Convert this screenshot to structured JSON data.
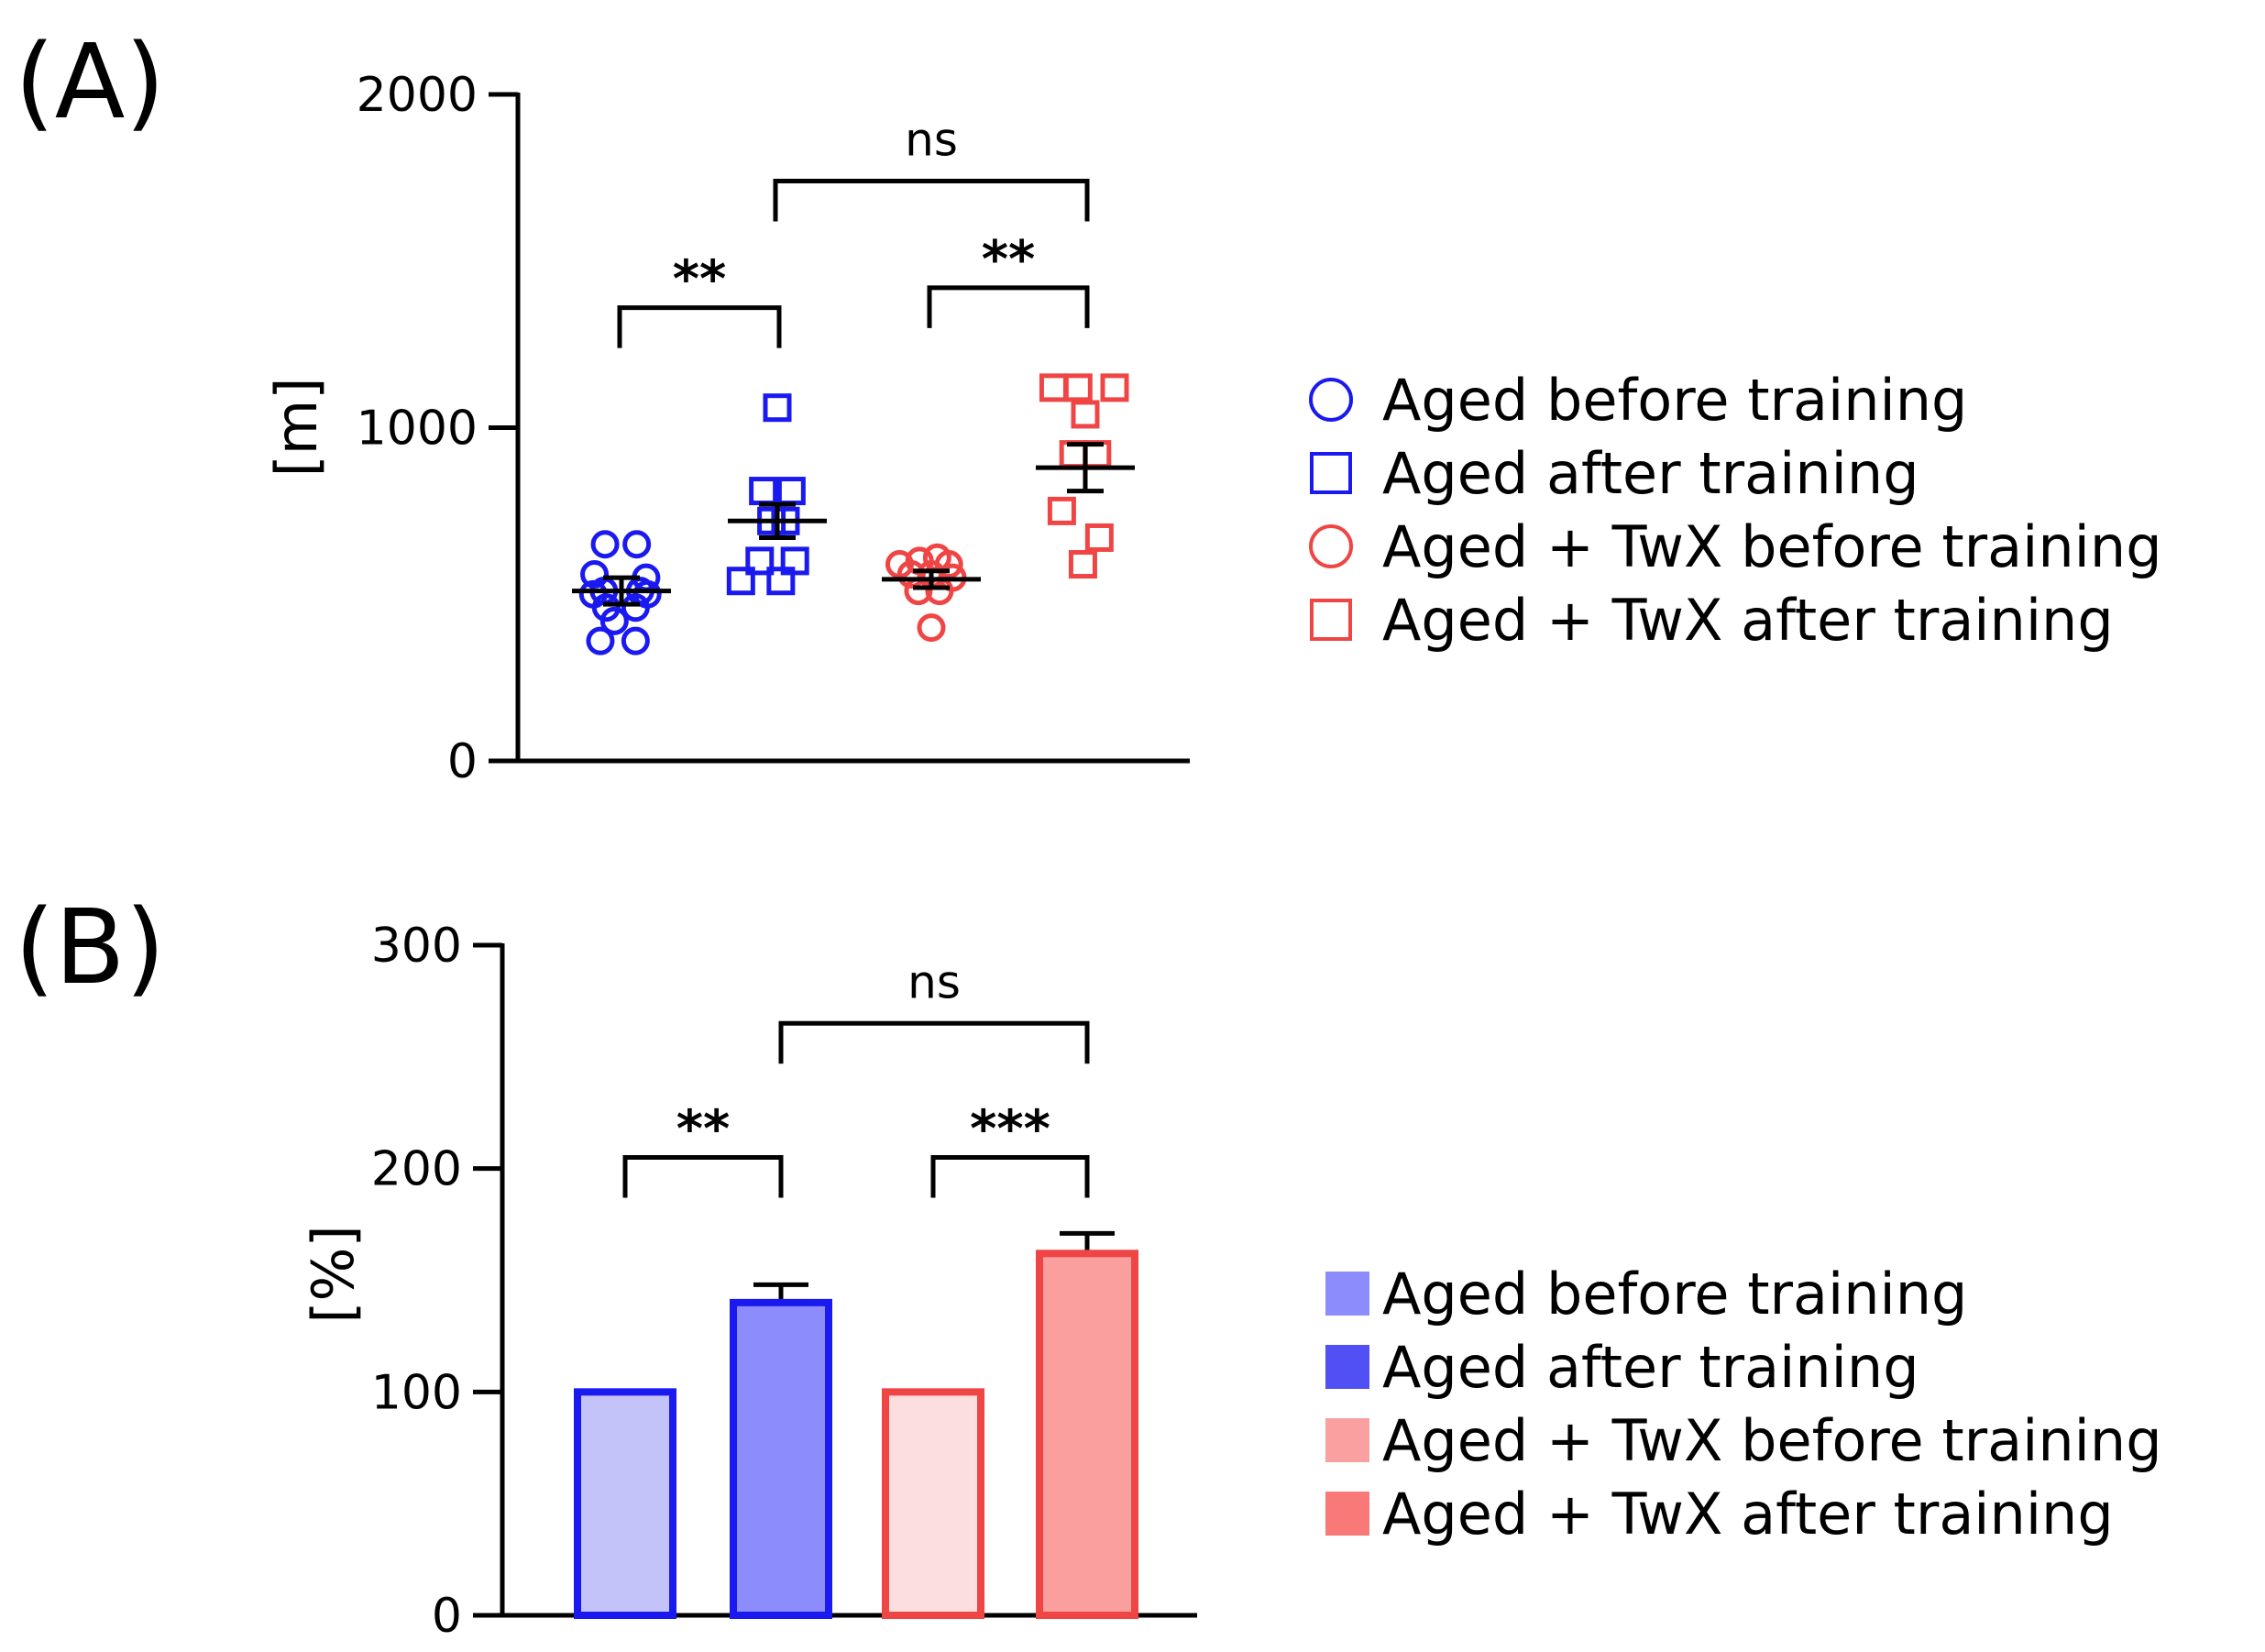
{
  "panels": [
    {
      "label": "(A)"
    },
    {
      "label": "(B)"
    }
  ],
  "colors": {
    "blue": "#1a1af0",
    "red": "#f04545",
    "blue_fill_light": "#c3c3fa",
    "blue_fill": "#8c8cfc",
    "red_fill_light": "#fddede",
    "red_fill": "#fb9e9e",
    "legend_b": [
      "#8c8cfc",
      "#5050f5",
      "#fba0a0",
      "#f97979"
    ]
  },
  "chart_data": [
    {
      "type": "scatter",
      "ylabel": "[m]",
      "xlabel": "",
      "ylim": [
        0,
        2000
      ],
      "yticks": [
        {
          "value": 0,
          "label": "0"
        },
        {
          "value": 1000,
          "label": "1000"
        },
        {
          "value": 2000,
          "label": "2000"
        }
      ],
      "series": [
        {
          "name": "Aged before training",
          "marker": "circle",
          "color": "blue",
          "points": [
            [
              -0.28,
              650
            ],
            [
              0.26,
              650
            ],
            [
              -0.46,
              560
            ],
            [
              0.42,
              550
            ],
            [
              -0.3,
              510
            ],
            [
              0.32,
              510
            ],
            [
              -0.48,
              500
            ],
            [
              0.44,
              500
            ],
            [
              -0.26,
              460
            ],
            [
              0.24,
              460
            ],
            [
              -0.12,
              420
            ],
            [
              -0.36,
              360
            ],
            [
              0.24,
              360
            ]
          ],
          "mean": 510,
          "sem": 40
        },
        {
          "name": "Aged after training",
          "marker": "square",
          "color": "blue",
          "points": [
            [
              0.0,
              1060
            ],
            [
              -0.24,
              810
            ],
            [
              0.24,
              810
            ],
            [
              -0.1,
              720
            ],
            [
              0.14,
              720
            ],
            [
              -0.3,
              600
            ],
            [
              0.3,
              600
            ],
            [
              -0.62,
              540
            ],
            [
              0.06,
              540
            ]
          ],
          "mean": 720,
          "sem": 50
        },
        {
          "name": "Aged + TwX before training",
          "marker": "circle",
          "color": "red",
          "points": [
            [
              -0.54,
              590
            ],
            [
              -0.2,
              600
            ],
            [
              0.1,
              610
            ],
            [
              0.3,
              590
            ],
            [
              -0.34,
              560
            ],
            [
              0.0,
              560
            ],
            [
              0.36,
              550
            ],
            [
              -0.22,
              510
            ],
            [
              0.14,
              510
            ],
            [
              0.0,
              400
            ]
          ],
          "mean": 545,
          "sem": 25
        },
        {
          "name": "Aged + TwX after training",
          "marker": "square",
          "color": "red",
          "points": [
            [
              -0.54,
              1120
            ],
            [
              -0.12,
              1120
            ],
            [
              0.5,
              1120
            ],
            [
              0.0,
              1040
            ],
            [
              -0.2,
              920
            ],
            [
              0.2,
              920
            ],
            [
              -0.4,
              750
            ],
            [
              0.24,
              670
            ],
            [
              -0.04,
              590
            ]
          ],
          "mean": 880,
          "sem": 70
        }
      ],
      "comparisons": [
        {
          "from": 0,
          "to": 1,
          "y": 1360,
          "label": "**"
        },
        {
          "from": 2,
          "to": 3,
          "y": 1420,
          "label": "**"
        },
        {
          "from": 1,
          "to": 3,
          "y": 1740,
          "label": "ns"
        }
      ],
      "legend": {
        "position": "right",
        "entries": [
          {
            "label": "Aged before training",
            "marker": "circle",
            "color": "blue"
          },
          {
            "label": "Aged after training",
            "marker": "square",
            "color": "blue"
          },
          {
            "label": "Aged + TwX before training",
            "marker": "circle",
            "color": "red"
          },
          {
            "label": "Aged + TwX after training",
            "marker": "square",
            "color": "red"
          }
        ]
      }
    },
    {
      "type": "bar",
      "ylabel": "[%]",
      "xlabel": "",
      "ylim": [
        0,
        300
      ],
      "yticks": [
        {
          "value": 0,
          "label": "0"
        },
        {
          "value": 100,
          "label": "100"
        },
        {
          "value": 200,
          "label": "200"
        },
        {
          "value": 300,
          "label": "300"
        }
      ],
      "categories": [
        "Aged before training",
        "Aged after training",
        "Aged + TwX before training",
        "Aged + TwX after training"
      ],
      "values": [
        100,
        140,
        100,
        162
      ],
      "errors": [
        0,
        8,
        0,
        9
      ],
      "bar_fills": [
        "blue_fill_light",
        "blue_fill",
        "red_fill_light",
        "red_fill"
      ],
      "bar_edges": [
        "blue",
        "blue",
        "red",
        "red"
      ],
      "comparisons": [
        {
          "from": 0,
          "to": 1,
          "y": 205,
          "label": "**"
        },
        {
          "from": 2,
          "to": 3,
          "y": 205,
          "label": "***"
        },
        {
          "from": 1,
          "to": 3,
          "y": 265,
          "label": "ns"
        }
      ],
      "legend": {
        "position": "right",
        "entries": [
          {
            "label": "Aged before training"
          },
          {
            "label": "Aged after training"
          },
          {
            "label": "Aged + TwX before training"
          },
          {
            "label": "Aged + TwX after training"
          }
        ]
      }
    }
  ]
}
